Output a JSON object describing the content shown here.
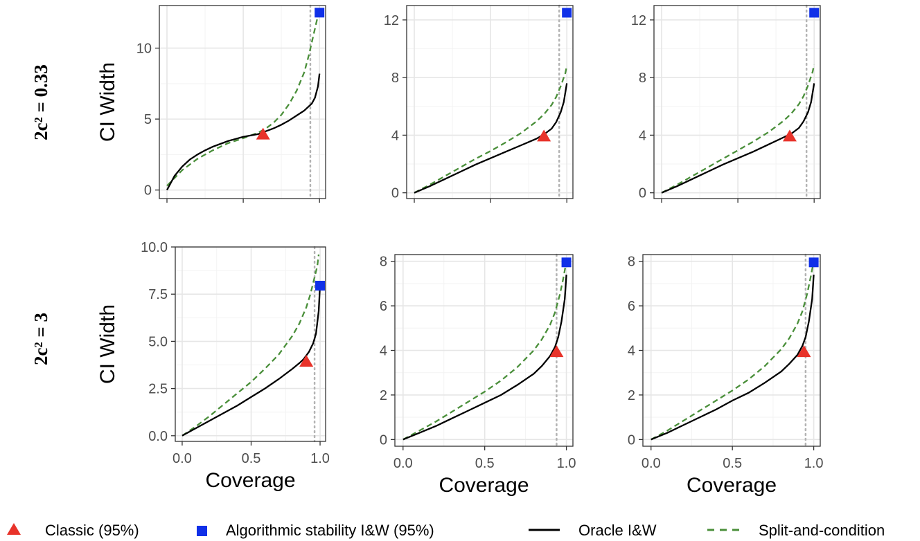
{
  "chart_data": {
    "type": "line",
    "row_labels": [
      "2c² = 0.33",
      "2c² = 3"
    ],
    "legend": [
      {
        "key": "classic",
        "label": "Classic (95%)",
        "marker": "triangle",
        "color": "#e8332a"
      },
      {
        "key": "algo",
        "label": "Algorithmic stability I&W  (95%)",
        "marker": "square",
        "color": "#1030e8"
      },
      {
        "key": "oracle",
        "label": "Oracle I&W",
        "style": "solid",
        "color": "#000000"
      },
      {
        "key": "split",
        "label": "Split-and-condition",
        "style": "dashed",
        "color": "#4a8f3a"
      }
    ],
    "colors": {
      "grid_major": "#e6e6e6",
      "grid_minor": "#f3f3f3",
      "vline": "#b3b3b3",
      "frame": "#333333"
    },
    "panels": [
      {
        "row": 0,
        "col": 0,
        "xlabel": "",
        "ylabel": "CI Width",
        "xlim": [
          -0.05,
          1.04
        ],
        "ylim": [
          -0.6,
          13
        ],
        "xticks": [
          0,
          0.5,
          1
        ],
        "xtick_labels": [
          "",
          "",
          ""
        ],
        "yticks": [
          0,
          5,
          10
        ],
        "ytick_labels": [
          "0",
          "5",
          "10"
        ],
        "vline_x": 0.94,
        "oracle": {
          "x": [
            0,
            0.05,
            0.1,
            0.15,
            0.2,
            0.25,
            0.3,
            0.35,
            0.4,
            0.45,
            0.5,
            0.55,
            0.6,
            0.65,
            0.7,
            0.75,
            0.8,
            0.85,
            0.9,
            0.93,
            0.95,
            0.97,
            0.99,
            1.0
          ],
          "y": [
            0,
            1.0,
            1.65,
            2.15,
            2.5,
            2.8,
            3.05,
            3.25,
            3.45,
            3.6,
            3.75,
            3.85,
            3.95,
            4.15,
            4.35,
            4.6,
            4.9,
            5.25,
            5.6,
            5.9,
            6.1,
            6.5,
            7.3,
            8.2
          ]
        },
        "split": {
          "x": [
            0,
            0.1,
            0.2,
            0.3,
            0.4,
            0.5,
            0.55,
            0.6,
            0.65,
            0.7,
            0.75,
            0.8,
            0.85,
            0.9,
            0.93,
            0.96,
            0.99,
            1.0
          ],
          "y": [
            0.3,
            1.4,
            2.2,
            2.8,
            3.3,
            3.65,
            3.85,
            4.05,
            4.35,
            4.75,
            5.3,
            6.05,
            7.0,
            8.3,
            9.5,
            10.9,
            12.3,
            12.6
          ]
        },
        "classic": {
          "x": 0.63,
          "y": 3.95
        },
        "algo": {
          "x": 1.0,
          "y": 12.5
        }
      },
      {
        "row": 0,
        "col": 1,
        "xlabel": "",
        "ylabel": "",
        "xlim": [
          -0.05,
          1.04
        ],
        "ylim": [
          -0.4,
          13
        ],
        "xticks": [
          0,
          0.5,
          1
        ],
        "xtick_labels": [
          "",
          "",
          ""
        ],
        "yticks": [
          0,
          4,
          8,
          12
        ],
        "ytick_labels": [
          "0",
          "4",
          "8",
          "12"
        ],
        "vline_x": 0.95,
        "oracle": {
          "x": [
            0,
            0.1,
            0.2,
            0.3,
            0.4,
            0.5,
            0.6,
            0.7,
            0.8,
            0.85,
            0.9,
            0.93,
            0.96,
            0.98,
            1.0
          ],
          "y": [
            0,
            0.45,
            0.95,
            1.45,
            1.95,
            2.4,
            2.85,
            3.3,
            3.75,
            4.05,
            4.45,
            4.9,
            5.6,
            6.3,
            7.6
          ]
        },
        "split": {
          "x": [
            0,
            0.1,
            0.2,
            0.3,
            0.4,
            0.5,
            0.6,
            0.7,
            0.8,
            0.85,
            0.9,
            0.93,
            0.96,
            0.99,
            1.0
          ],
          "y": [
            0,
            0.55,
            1.15,
            1.75,
            2.35,
            2.9,
            3.5,
            4.15,
            4.95,
            5.45,
            6.1,
            6.65,
            7.4,
            8.3,
            8.8
          ]
        },
        "classic": {
          "x": 0.85,
          "y": 3.95
        },
        "algo": {
          "x": 1.0,
          "y": 12.5
        }
      },
      {
        "row": 0,
        "col": 2,
        "xlabel": "",
        "ylabel": "",
        "xlim": [
          -0.05,
          1.04
        ],
        "ylim": [
          -0.4,
          13
        ],
        "xticks": [
          0,
          0.5,
          1
        ],
        "xtick_labels": [
          "",
          "",
          ""
        ],
        "yticks": [
          0,
          4,
          8,
          12
        ],
        "ytick_labels": [
          "0",
          "4",
          "8",
          "12"
        ],
        "vline_x": 0.95,
        "oracle": {
          "x": [
            0,
            0.1,
            0.2,
            0.3,
            0.4,
            0.5,
            0.6,
            0.7,
            0.8,
            0.85,
            0.9,
            0.93,
            0.96,
            0.98,
            1.0
          ],
          "y": [
            0,
            0.45,
            0.95,
            1.45,
            1.95,
            2.4,
            2.85,
            3.35,
            3.85,
            4.1,
            4.5,
            4.95,
            5.6,
            6.3,
            7.6
          ]
        },
        "split": {
          "x": [
            0,
            0.1,
            0.2,
            0.3,
            0.4,
            0.5,
            0.6,
            0.7,
            0.8,
            0.85,
            0.9,
            0.93,
            0.96,
            0.99,
            1.0
          ],
          "y": [
            0,
            0.55,
            1.15,
            1.75,
            2.35,
            2.95,
            3.55,
            4.2,
            5.0,
            5.5,
            6.15,
            6.7,
            7.45,
            8.4,
            8.9
          ]
        },
        "classic": {
          "x": 0.84,
          "y": 3.95
        },
        "algo": {
          "x": 1.0,
          "y": 12.5
        }
      },
      {
        "row": 1,
        "col": 0,
        "xlabel": "Coverage",
        "ylabel": "CI Width",
        "xlim": [
          -0.05,
          1.04
        ],
        "ylim": [
          -0.3,
          10
        ],
        "xticks": [
          0,
          0.5,
          1
        ],
        "xtick_labels": [
          "0.0",
          "0.5",
          "1.0"
        ],
        "yticks": [
          0,
          2.5,
          5,
          7.5,
          10
        ],
        "ytick_labels": [
          "0.0",
          "2.5",
          "5.0",
          "7.5",
          "10.0"
        ],
        "vline_x": 0.96,
        "oracle": {
          "x": [
            0,
            0.1,
            0.2,
            0.3,
            0.4,
            0.5,
            0.6,
            0.7,
            0.8,
            0.85,
            0.88,
            0.9,
            0.92,
            0.95,
            0.97,
            0.99,
            1.0
          ],
          "y": [
            0,
            0.4,
            0.8,
            1.2,
            1.6,
            2.05,
            2.5,
            3.0,
            3.55,
            3.85,
            4.05,
            4.25,
            4.45,
            4.9,
            5.4,
            6.6,
            8.0
          ]
        },
        "split": {
          "x": [
            0,
            0.1,
            0.2,
            0.3,
            0.4,
            0.5,
            0.6,
            0.7,
            0.8,
            0.85,
            0.9,
            0.93,
            0.96,
            0.98,
            0.99
          ],
          "y": [
            0,
            0.5,
            1.05,
            1.65,
            2.25,
            2.85,
            3.55,
            4.3,
            5.3,
            5.95,
            6.8,
            7.5,
            8.4,
            9.0,
            9.6
          ]
        },
        "classic": {
          "x": 0.9,
          "y": 3.95
        },
        "algo": {
          "x": 1.0,
          "y": 7.95
        }
      },
      {
        "row": 1,
        "col": 1,
        "xlabel": "Coverage",
        "ylabel": "",
        "xlim": [
          -0.05,
          1.04
        ],
        "ylim": [
          -0.3,
          8.3
        ],
        "xticks": [
          0,
          0.5,
          1
        ],
        "xtick_labels": [
          "0.0",
          "0.5",
          "1.0"
        ],
        "yticks": [
          0,
          2,
          4,
          6,
          8
        ],
        "ytick_labels": [
          "0",
          "2",
          "4",
          "6",
          "8"
        ],
        "vline_x": 0.94,
        "oracle": {
          "x": [
            0,
            0.1,
            0.2,
            0.3,
            0.4,
            0.5,
            0.6,
            0.7,
            0.8,
            0.85,
            0.9,
            0.93,
            0.95,
            0.97,
            0.99,
            1.0
          ],
          "y": [
            0,
            0.3,
            0.6,
            0.95,
            1.3,
            1.65,
            2.0,
            2.45,
            2.95,
            3.3,
            3.75,
            4.15,
            4.6,
            5.3,
            6.3,
            7.4
          ]
        },
        "split": {
          "x": [
            0,
            0.1,
            0.2,
            0.3,
            0.4,
            0.5,
            0.6,
            0.7,
            0.8,
            0.85,
            0.9,
            0.93,
            0.96,
            0.98,
            1.0
          ],
          "y": [
            0,
            0.4,
            0.8,
            1.25,
            1.7,
            2.15,
            2.65,
            3.25,
            4.0,
            4.5,
            5.15,
            5.7,
            6.5,
            7.2,
            8.0
          ]
        },
        "classic": {
          "x": 0.94,
          "y": 3.95
        },
        "algo": {
          "x": 1.0,
          "y": 7.95
        }
      },
      {
        "row": 1,
        "col": 2,
        "xlabel": "Coverage",
        "ylabel": "",
        "xlim": [
          -0.05,
          1.04
        ],
        "ylim": [
          -0.3,
          8.3
        ],
        "xticks": [
          0,
          0.5,
          1
        ],
        "xtick_labels": [
          "0.0",
          "0.5",
          "1.0"
        ],
        "yticks": [
          0,
          2,
          4,
          6,
          8
        ],
        "ytick_labels": [
          "0",
          "2",
          "4",
          "6",
          "8"
        ],
        "vline_x": 0.95,
        "oracle": {
          "x": [
            0,
            0.1,
            0.2,
            0.3,
            0.4,
            0.5,
            0.6,
            0.7,
            0.8,
            0.85,
            0.9,
            0.93,
            0.95,
            0.97,
            0.99,
            1.0
          ],
          "y": [
            0,
            0.3,
            0.65,
            1.0,
            1.35,
            1.75,
            2.1,
            2.55,
            3.05,
            3.4,
            3.8,
            4.2,
            4.6,
            5.3,
            6.3,
            7.4
          ]
        },
        "split": {
          "x": [
            0,
            0.1,
            0.2,
            0.3,
            0.4,
            0.5,
            0.6,
            0.7,
            0.8,
            0.85,
            0.9,
            0.93,
            0.96,
            0.98,
            1.0
          ],
          "y": [
            0,
            0.4,
            0.85,
            1.3,
            1.75,
            2.2,
            2.7,
            3.3,
            4.05,
            4.55,
            5.2,
            5.75,
            6.55,
            7.25,
            8.0
          ]
        },
        "classic": {
          "x": 0.94,
          "y": 3.95
        },
        "algo": {
          "x": 1.0,
          "y": 7.95
        }
      }
    ]
  }
}
